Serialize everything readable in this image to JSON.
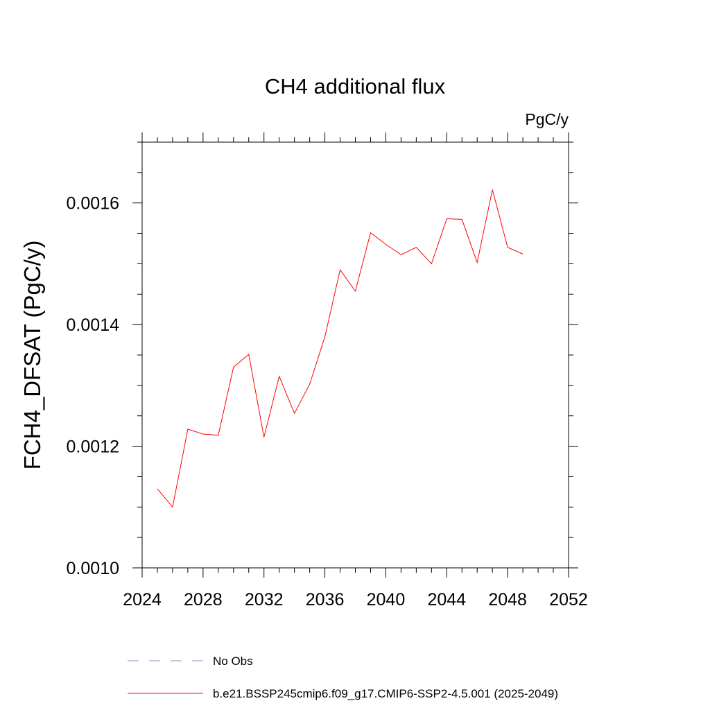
{
  "chart_data": {
    "type": "line",
    "title": "CH4 additional flux",
    "units_label": "PgC/y",
    "ylabel": "FCH4_DFSAT  (PgC/y)",
    "xlabel": "",
    "xlim": [
      2024,
      2052
    ],
    "ylim": [
      0.001,
      0.0017
    ],
    "x_ticks": [
      2024,
      2028,
      2032,
      2036,
      2040,
      2044,
      2048,
      2052
    ],
    "x_tick_labels": [
      "2024",
      "2028",
      "2032",
      "2036",
      "2040",
      "2044",
      "2048",
      "2052"
    ],
    "y_ticks": [
      0.001,
      0.0012,
      0.0014,
      0.0016
    ],
    "y_tick_labels": [
      "0.0010",
      "0.0012",
      "0.0014",
      "0.0016"
    ],
    "x_minor_step": 1,
    "y_minor_step": 5e-05,
    "grid": false,
    "legend_position": "bottom",
    "series": [
      {
        "name": "b.e21.BSSP245cmip6.f09_g17.CMIP6-SSP2-4.5.001 (2025-2049)",
        "color": "#ff0000",
        "dash": "solid",
        "x": [
          2025,
          2026,
          2027,
          2028,
          2029,
          2030,
          2031,
          2032,
          2033,
          2034,
          2035,
          2036,
          2037,
          2038,
          2039,
          2040,
          2041,
          2042,
          2043,
          2044,
          2045,
          2046,
          2047,
          2048,
          2049
        ],
        "values": [
          0.00113,
          0.0011,
          0.001228,
          0.00122,
          0.001218,
          0.00133,
          0.001351,
          0.001215,
          0.001315,
          0.001254,
          0.001302,
          0.00138,
          0.00149,
          0.001455,
          0.001551,
          0.001532,
          0.001515,
          0.001527,
          0.0015,
          0.001574,
          0.001573,
          0.001502,
          0.001622,
          0.001527,
          0.001516
        ]
      }
    ],
    "legend": [
      {
        "label": "No Obs",
        "color": "#8888cc",
        "dash": "dashed"
      },
      {
        "label": "b.e21.BSSP245cmip6.f09_g17.CMIP6-SSP2-4.5.001 (2025-2049)",
        "color": "#ff0000",
        "dash": "solid"
      }
    ]
  }
}
